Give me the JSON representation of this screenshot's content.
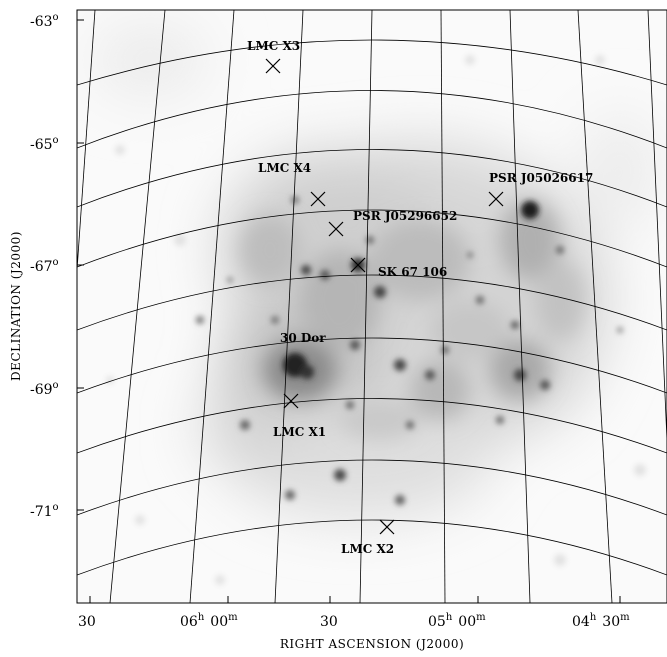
{
  "figure": {
    "x_axis_title": "RIGHT ASCENSION (J2000)",
    "y_axis_title": "DECLINATION (J2000)",
    "ra_ticks": [
      {
        "main": "30",
        "sup": ""
      },
      {
        "main": "06",
        "sup": "h",
        "tail": "00",
        "tail_sup": "m"
      },
      {
        "main": "30",
        "sup": ""
      },
      {
        "main": "05",
        "sup": "h",
        "tail": "00",
        "tail_sup": "m"
      },
      {
        "main": "04",
        "sup": "h",
        "tail": "30",
        "tail_sup": "m"
      }
    ],
    "dec_ticks": [
      {
        "main": "-63",
        "sup": "o"
      },
      {
        "main": "-65",
        "sup": "o"
      },
      {
        "main": "-67",
        "sup": "o"
      },
      {
        "main": "-69",
        "sup": "o"
      },
      {
        "main": "-71",
        "sup": "o"
      }
    ],
    "sources": [
      {
        "name": "LMC X3"
      },
      {
        "name": "LMC X4"
      },
      {
        "name": "PSR J05296652"
      },
      {
        "name": "SK 67 106"
      },
      {
        "name": "PSR J05026617"
      },
      {
        "name": "30 Dor"
      },
      {
        "name": "LMC X1"
      },
      {
        "name": "LMC X2"
      }
    ],
    "colors": {
      "background": "#ffffff",
      "ink": "#000000",
      "emission_dark": "#1a1a1a",
      "emission_light": "#e6e6e6"
    }
  }
}
